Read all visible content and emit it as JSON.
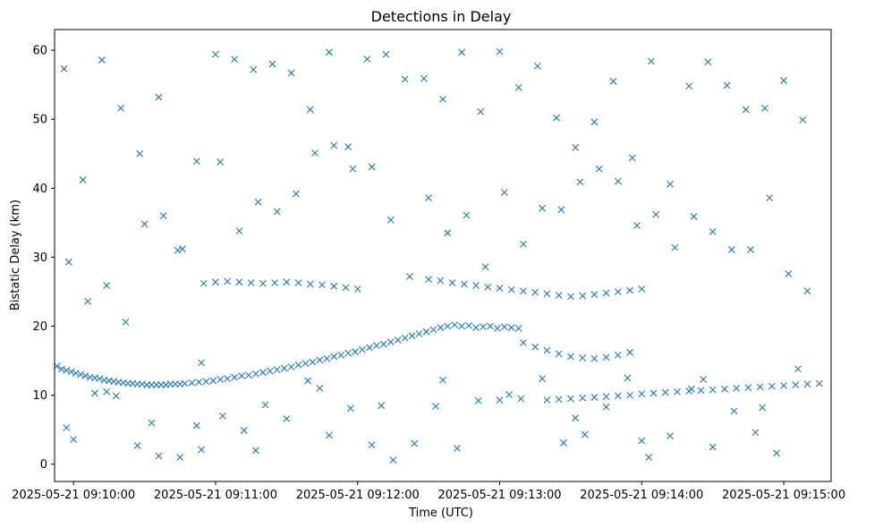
{
  "chart_data": {
    "type": "scatter",
    "title": "Detections in Delay",
    "xlabel": "Time (UTC)",
    "ylabel": "Bistatic Delay (km)",
    "marker": "x",
    "color": "#1f77b4",
    "grid": false,
    "xlim": [
      "2025-05-21 09:09:52",
      "2025-05-21 09:15:20"
    ],
    "ylim": [
      -2.5,
      63
    ],
    "xticks": [
      "2025-05-21 09:10:00",
      "2025-05-21 09:11:00",
      "2025-05-21 09:12:00",
      "2025-05-21 09:13:00",
      "2025-05-21 09:14:00",
      "2025-05-21 09:15:00"
    ],
    "yticks": [
      0,
      10,
      20,
      30,
      40,
      50,
      60
    ],
    "points_note": "",
    "series": [
      {
        "x": [
          "2025-05-21 09:09:53",
          "2025-05-21 09:09:55",
          "2025-05-21 09:09:57",
          "2025-05-21 09:09:59",
          "2025-05-21 09:10:01",
          "2025-05-21 09:10:03",
          "2025-05-21 09:10:05",
          "2025-05-21 09:10:07",
          "2025-05-21 09:10:09",
          "2025-05-21 09:10:11",
          "2025-05-21 09:10:13",
          "2025-05-21 09:10:15",
          "2025-05-21 09:10:17",
          "2025-05-21 09:10:19",
          "2025-05-21 09:10:21",
          "2025-05-21 09:10:23",
          "2025-05-21 09:10:25",
          "2025-05-21 09:10:27",
          "2025-05-21 09:10:29",
          "2025-05-21 09:10:31",
          "2025-05-21 09:10:33",
          "2025-05-21 09:10:35",
          "2025-05-21 09:10:37",
          "2025-05-21 09:10:39",
          "2025-05-21 09:10:41",
          "2025-05-21 09:10:43",
          "2025-05-21 09:10:45",
          "2025-05-21 09:10:47",
          "2025-05-21 09:10:50",
          "2025-05-21 09:10:53",
          "2025-05-21 09:10:56",
          "2025-05-21 09:10:59",
          "2025-05-21 09:11:02",
          "2025-05-21 09:11:05",
          "2025-05-21 09:11:08",
          "2025-05-21 09:11:11",
          "2025-05-21 09:11:14",
          "2025-05-21 09:11:17",
          "2025-05-21 09:11:20",
          "2025-05-21 09:11:23",
          "2025-05-21 09:11:26",
          "2025-05-21 09:11:29",
          "2025-05-21 09:11:32",
          "2025-05-21 09:11:35",
          "2025-05-21 09:11:38",
          "2025-05-21 09:11:41",
          "2025-05-21 09:11:44",
          "2025-05-21 09:11:47",
          "2025-05-21 09:11:50",
          "2025-05-21 09:11:53",
          "2025-05-21 09:11:56",
          "2025-05-21 09:11:59",
          "2025-05-21 09:12:02",
          "2025-05-21 09:12:05",
          "2025-05-21 09:12:08",
          "2025-05-21 09:12:11",
          "2025-05-21 09:12:14",
          "2025-05-21 09:12:17",
          "2025-05-21 09:12:20",
          "2025-05-21 09:12:23",
          "2025-05-21 09:12:26",
          "2025-05-21 09:12:29",
          "2025-05-21 09:12:32",
          "2025-05-21 09:12:35",
          "2025-05-21 09:12:38",
          "2025-05-21 09:12:41",
          "2025-05-21 09:12:44",
          "2025-05-21 09:12:47",
          "2025-05-21 09:12:50",
          "2025-05-21 09:12:53",
          "2025-05-21 09:12:56",
          "2025-05-21 09:12:59",
          "2025-05-21 09:13:02",
          "2025-05-21 09:13:05",
          "2025-05-21 09:13:08"
        ],
        "y": [
          14.2,
          13.8,
          13.6,
          13.4,
          13.2,
          13.0,
          12.8,
          12.6,
          12.5,
          12.4,
          12.2,
          12.1,
          12.0,
          11.9,
          11.8,
          11.7,
          11.7,
          11.6,
          11.6,
          11.5,
          11.5,
          11.5,
          11.5,
          11.5,
          11.6,
          11.6,
          11.6,
          11.7,
          11.8,
          11.9,
          12.0,
          12.1,
          12.3,
          12.4,
          12.6,
          12.8,
          12.9,
          13.1,
          13.3,
          13.5,
          13.7,
          13.9,
          14.1,
          14.4,
          14.6,
          14.8,
          15.1,
          15.3,
          15.6,
          15.8,
          16.1,
          16.3,
          16.6,
          16.9,
          17.2,
          17.4,
          17.7,
          18.0,
          18.3,
          18.6,
          18.9,
          19.2,
          19.5,
          19.8,
          20.0,
          20.2,
          20.0,
          20.1,
          19.8,
          19.9,
          20.0,
          19.7,
          19.9,
          19.8,
          19.7
        ]
      },
      {
        "x": [
          "2025-05-21 09:13:20",
          "2025-05-21 09:13:25",
          "2025-05-21 09:13:30",
          "2025-05-21 09:13:35",
          "2025-05-21 09:13:40",
          "2025-05-21 09:13:45",
          "2025-05-21 09:13:50",
          "2025-05-21 09:13:55",
          "2025-05-21 09:14:00",
          "2025-05-21 09:14:05",
          "2025-05-21 09:14:10",
          "2025-05-21 09:14:15",
          "2025-05-21 09:14:20",
          "2025-05-21 09:14:25",
          "2025-05-21 09:14:30",
          "2025-05-21 09:14:35",
          "2025-05-21 09:14:40",
          "2025-05-21 09:14:45",
          "2025-05-21 09:14:50",
          "2025-05-21 09:14:55",
          "2025-05-21 09:15:00",
          "2025-05-21 09:15:05",
          "2025-05-21 09:15:10",
          "2025-05-21 09:15:15"
        ],
        "y": [
          9.3,
          9.4,
          9.5,
          9.6,
          9.7,
          9.8,
          9.9,
          10.0,
          10.2,
          10.3,
          10.4,
          10.5,
          10.6,
          10.7,
          10.8,
          10.9,
          11.0,
          11.1,
          11.2,
          11.3,
          11.4,
          11.5,
          11.6,
          11.7
        ]
      },
      {
        "x": [
          "2025-05-21 09:10:55",
          "2025-05-21 09:11:00",
          "2025-05-21 09:11:05",
          "2025-05-21 09:11:10",
          "2025-05-21 09:11:15",
          "2025-05-21 09:11:20",
          "2025-05-21 09:11:25",
          "2025-05-21 09:11:30",
          "2025-05-21 09:11:35",
          "2025-05-21 09:11:40",
          "2025-05-21 09:11:45",
          "2025-05-21 09:11:50",
          "2025-05-21 09:11:55",
          "2025-05-21 09:12:00",
          "2025-05-21 09:12:30",
          "2025-05-21 09:12:35",
          "2025-05-21 09:12:40",
          "2025-05-21 09:12:45",
          "2025-05-21 09:12:50",
          "2025-05-21 09:12:55",
          "2025-05-21 09:13:00",
          "2025-05-21 09:13:05",
          "2025-05-21 09:13:10",
          "2025-05-21 09:13:15",
          "2025-05-21 09:13:20",
          "2025-05-21 09:13:25",
          "2025-05-21 09:13:30",
          "2025-05-21 09:13:35",
          "2025-05-21 09:13:40",
          "2025-05-21 09:13:45",
          "2025-05-21 09:13:50",
          "2025-05-21 09:13:55",
          "2025-05-21 09:14:00"
        ],
        "y": [
          26.2,
          26.4,
          26.5,
          26.4,
          26.3,
          26.2,
          26.3,
          26.4,
          26.3,
          26.1,
          26.0,
          25.8,
          25.6,
          25.4,
          26.8,
          26.6,
          26.3,
          26.1,
          25.9,
          25.7,
          25.5,
          25.3,
          25.1,
          24.9,
          24.7,
          24.5,
          24.3,
          24.4,
          24.6,
          24.8,
          25.0,
          25.2,
          25.4
        ]
      },
      {
        "x": [
          "2025-05-21 09:13:10",
          "2025-05-21 09:13:15",
          "2025-05-21 09:13:20",
          "2025-05-21 09:13:25",
          "2025-05-21 09:13:30",
          "2025-05-21 09:13:35",
          "2025-05-21 09:13:40",
          "2025-05-21 09:13:45",
          "2025-05-21 09:13:50",
          "2025-05-21 09:13:55"
        ],
        "y": [
          17.6,
          17.0,
          16.5,
          16.0,
          15.6,
          15.4,
          15.3,
          15.5,
          15.8,
          16.2
        ]
      },
      {
        "x": [
          "2025-05-21 09:09:56",
          "2025-05-21 09:10:04",
          "2025-05-21 09:10:12",
          "2025-05-21 09:10:20",
          "2025-05-21 09:10:28",
          "2025-05-21 09:10:36",
          "2025-05-21 09:10:44",
          "2025-05-21 09:10:52",
          "2025-05-21 09:11:00",
          "2025-05-21 09:11:08",
          "2025-05-21 09:11:16",
          "2025-05-21 09:11:24",
          "2025-05-21 09:11:32",
          "2025-05-21 09:11:40",
          "2025-05-21 09:11:48",
          "2025-05-21 09:11:56",
          "2025-05-21 09:12:04",
          "2025-05-21 09:12:12",
          "2025-05-21 09:12:20",
          "2025-05-21 09:12:28",
          "2025-05-21 09:12:36",
          "2025-05-21 09:12:44",
          "2025-05-21 09:12:52",
          "2025-05-21 09:13:00",
          "2025-05-21 09:13:08",
          "2025-05-21 09:13:16",
          "2025-05-21 09:13:24",
          "2025-05-21 09:13:32",
          "2025-05-21 09:13:40",
          "2025-05-21 09:13:48",
          "2025-05-21 09:13:56",
          "2025-05-21 09:14:04",
          "2025-05-21 09:14:12",
          "2025-05-21 09:14:20",
          "2025-05-21 09:14:28",
          "2025-05-21 09:14:36",
          "2025-05-21 09:14:44",
          "2025-05-21 09:14:52",
          "2025-05-21 09:15:00",
          "2025-05-21 09:15:08",
          "2025-05-21 09:09:58",
          "2025-05-21 09:10:06",
          "2025-05-21 09:10:14",
          "2025-05-21 09:10:22",
          "2025-05-21 09:10:30",
          "2025-05-21 09:10:38",
          "2025-05-21 09:10:46",
          "2025-05-21 09:10:54",
          "2025-05-21 09:11:02",
          "2025-05-21 09:11:10",
          "2025-05-21 09:11:18",
          "2025-05-21 09:11:26",
          "2025-05-21 09:11:34",
          "2025-05-21 09:11:42",
          "2025-05-21 09:11:50",
          "2025-05-21 09:11:58",
          "2025-05-21 09:12:06",
          "2025-05-21 09:12:14",
          "2025-05-21 09:12:22",
          "2025-05-21 09:12:30",
          "2025-05-21 09:12:38",
          "2025-05-21 09:12:46",
          "2025-05-21 09:12:54",
          "2025-05-21 09:13:02",
          "2025-05-21 09:13:10",
          "2025-05-21 09:13:18",
          "2025-05-21 09:13:26",
          "2025-05-21 09:13:34",
          "2025-05-21 09:13:42",
          "2025-05-21 09:13:50",
          "2025-05-21 09:13:58",
          "2025-05-21 09:14:06",
          "2025-05-21 09:14:14",
          "2025-05-21 09:14:22",
          "2025-05-21 09:14:30",
          "2025-05-21 09:14:38",
          "2025-05-21 09:14:46",
          "2025-05-21 09:14:54",
          "2025-05-21 09:15:02",
          "2025-05-21 09:15:10"
        ],
        "y": [
          57.3,
          41.2,
          58.6,
          51.6,
          45.0,
          53.2,
          31.0,
          43.9,
          59.4,
          58.7,
          57.2,
          58.0,
          56.7,
          51.4,
          59.7,
          46.0,
          58.7,
          59.4,
          55.8,
          55.9,
          52.9,
          59.7,
          51.1,
          59.8,
          54.6,
          57.7,
          50.2,
          45.9,
          49.6,
          55.5,
          44.4,
          58.4,
          40.6,
          54.8,
          58.3,
          54.9,
          51.4,
          51.6,
          55.6,
          49.9,
          29.3,
          23.6,
          25.9,
          20.6,
          34.8,
          36.0,
          31.2,
          14.7,
          43.8,
          33.8,
          38.0,
          36.6,
          39.2,
          45.1,
          46.2,
          42.8,
          43.1,
          35.4,
          27.2,
          38.6,
          33.5,
          36.1,
          28.6,
          39.4,
          31.9,
          37.1,
          36.9,
          40.9,
          42.8,
          41.0,
          34.6,
          36.2,
          31.4,
          35.9,
          33.7,
          31.1,
          31.1,
          38.6,
          27.6,
          25.1
        ]
      },
      {
        "x": [
          "2025-05-21 09:10:00",
          "2025-05-21 09:10:09",
          "2025-05-21 09:10:18",
          "2025-05-21 09:10:27",
          "2025-05-21 09:10:36",
          "2025-05-21 09:10:45",
          "2025-05-21 09:10:54",
          "2025-05-21 09:11:03",
          "2025-05-21 09:11:12",
          "2025-05-21 09:11:21",
          "2025-05-21 09:11:30",
          "2025-05-21 09:11:39",
          "2025-05-21 09:11:48",
          "2025-05-21 09:11:57",
          "2025-05-21 09:12:06",
          "2025-05-21 09:12:15",
          "2025-05-21 09:12:24",
          "2025-05-21 09:12:33",
          "2025-05-21 09:12:42",
          "2025-05-21 09:12:51",
          "2025-05-21 09:13:00",
          "2025-05-21 09:13:09",
          "2025-05-21 09:13:18",
          "2025-05-21 09:13:27",
          "2025-05-21 09:13:36",
          "2025-05-21 09:13:45",
          "2025-05-21 09:13:54",
          "2025-05-21 09:14:03",
          "2025-05-21 09:14:12",
          "2025-05-21 09:14:21",
          "2025-05-21 09:14:30",
          "2025-05-21 09:14:39",
          "2025-05-21 09:14:48",
          "2025-05-21 09:14:57",
          "2025-05-21 09:15:06",
          "2025-05-21 09:09:57",
          "2025-05-21 09:10:14",
          "2025-05-21 09:10:33",
          "2025-05-21 09:10:52",
          "2025-05-21 09:11:17",
          "2025-05-21 09:11:44",
          "2025-05-21 09:12:10",
          "2025-05-21 09:12:36",
          "2025-05-21 09:13:04",
          "2025-05-21 09:13:32",
          "2025-05-21 09:14:00",
          "2025-05-21 09:14:26",
          "2025-05-21 09:14:51"
        ],
        "y": [
          3.6,
          10.3,
          9.9,
          2.7,
          1.2,
          1.0,
          2.1,
          7.0,
          4.9,
          8.6,
          6.6,
          12.1,
          4.2,
          8.1,
          2.8,
          0.6,
          3.0,
          8.4,
          2.3,
          9.2,
          9.3,
          9.5,
          12.4,
          3.1,
          4.3,
          8.3,
          12.5,
          1.0,
          4.1,
          10.9,
          2.5,
          7.7,
          4.6,
          1.6,
          13.8,
          5.3,
          10.5,
          6.0,
          5.6,
          2.0,
          11.0,
          8.5,
          12.2,
          10.1,
          6.7,
          3.4,
          12.3,
          8.2
        ]
      }
    ]
  }
}
